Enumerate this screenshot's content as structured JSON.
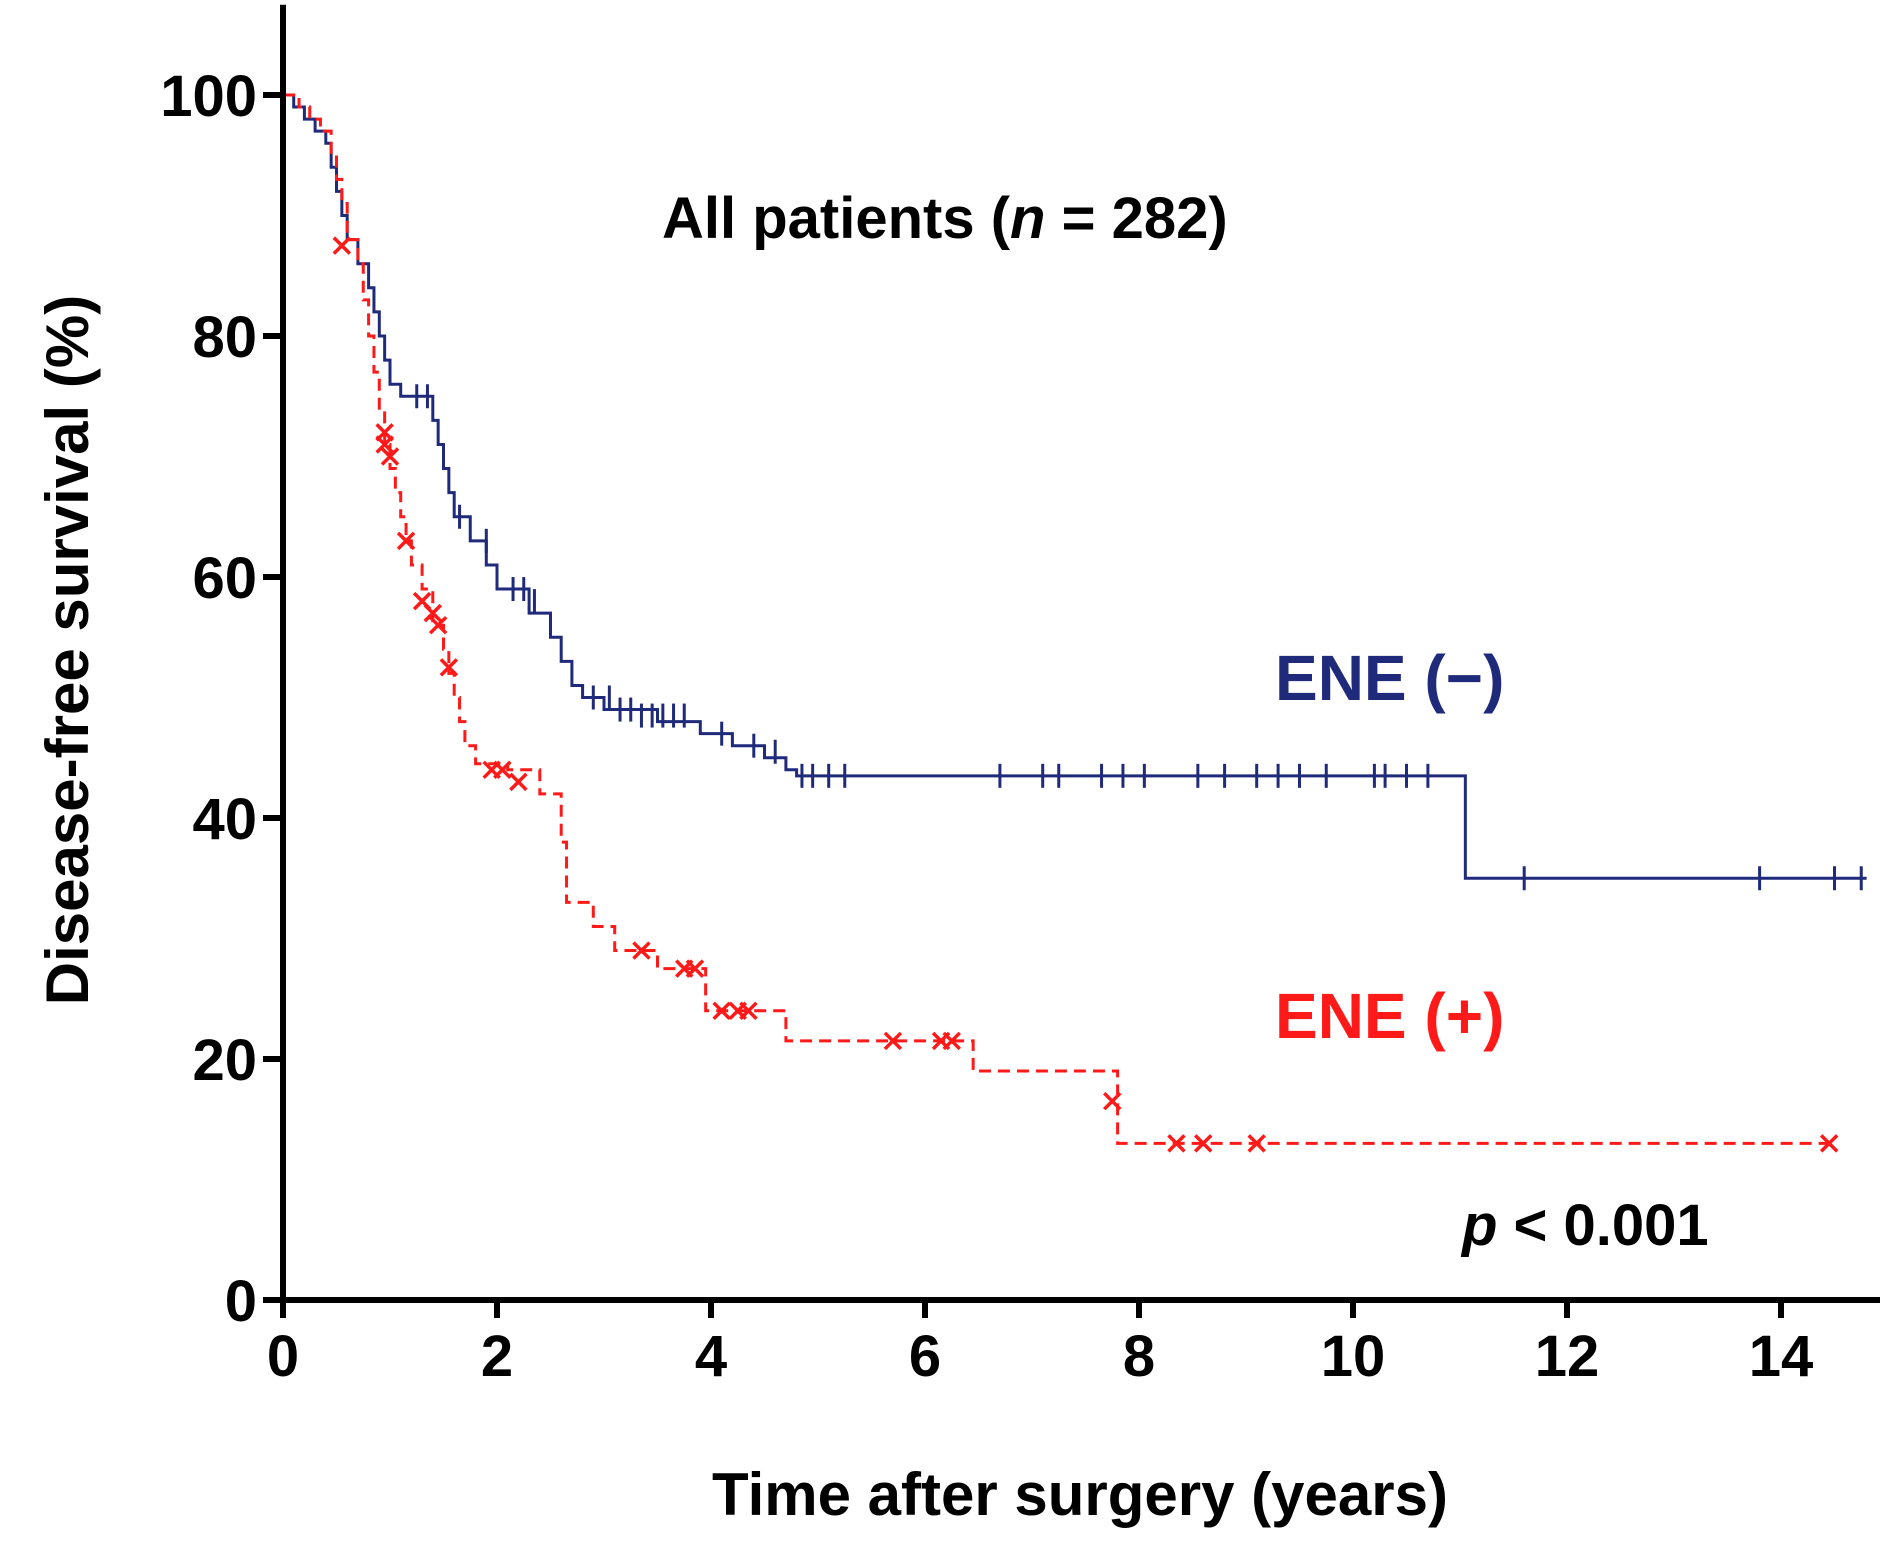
{
  "chart_data": {
    "type": "line",
    "subtype": "kaplan-meier",
    "title": "",
    "annotation_title": {
      "prefix": "All patients (",
      "n_symbol": "n",
      "suffix": " = 282)"
    },
    "pvalue": {
      "symbol": "p",
      "text": " < 0.001"
    },
    "xlabel": "Time after surgery (years)",
    "ylabel": "Disease-free survival (%)",
    "xlim": [
      0,
      14.8
    ],
    "ylim": [
      0,
      105
    ],
    "xticks": [
      0,
      2,
      4,
      6,
      8,
      10,
      12,
      14
    ],
    "yticks": [
      0,
      20,
      40,
      60,
      80,
      100
    ],
    "series": [
      {
        "name": "ENE (−)",
        "label": "ENE (−)",
        "color": "#1f2a7a",
        "line_style": "solid",
        "censor_marker": "tick",
        "steps": [
          [
            0,
            100
          ],
          [
            0.1,
            99
          ],
          [
            0.2,
            98
          ],
          [
            0.3,
            97
          ],
          [
            0.4,
            96
          ],
          [
            0.45,
            94
          ],
          [
            0.5,
            92
          ],
          [
            0.55,
            90
          ],
          [
            0.6,
            88
          ],
          [
            0.7,
            86
          ],
          [
            0.8,
            84
          ],
          [
            0.85,
            82
          ],
          [
            0.9,
            80
          ],
          [
            0.95,
            78
          ],
          [
            1.0,
            76
          ],
          [
            1.1,
            75
          ],
          [
            1.4,
            73
          ],
          [
            1.45,
            71
          ],
          [
            1.5,
            69
          ],
          [
            1.55,
            67
          ],
          [
            1.6,
            65
          ],
          [
            1.75,
            63
          ],
          [
            1.9,
            61
          ],
          [
            2.0,
            59
          ],
          [
            2.3,
            57
          ],
          [
            2.5,
            55
          ],
          [
            2.6,
            53
          ],
          [
            2.7,
            51
          ],
          [
            2.8,
            50
          ],
          [
            3.0,
            49
          ],
          [
            3.5,
            48
          ],
          [
            3.9,
            47
          ],
          [
            4.2,
            46
          ],
          [
            4.5,
            45
          ],
          [
            4.7,
            44
          ],
          [
            4.8,
            43.5
          ],
          [
            11.05,
            35
          ]
        ],
        "end_x": 14.8,
        "censored": [
          [
            1.25,
            75
          ],
          [
            1.35,
            75
          ],
          [
            1.65,
            65
          ],
          [
            1.9,
            63
          ],
          [
            2.15,
            59
          ],
          [
            2.25,
            59
          ],
          [
            2.35,
            58
          ],
          [
            2.9,
            50
          ],
          [
            3.05,
            50
          ],
          [
            3.15,
            49
          ],
          [
            3.25,
            49
          ],
          [
            3.35,
            48.5
          ],
          [
            3.45,
            48.5
          ],
          [
            3.55,
            48.5
          ],
          [
            3.65,
            48.5
          ],
          [
            3.75,
            48.5
          ],
          [
            4.1,
            47
          ],
          [
            4.4,
            46
          ],
          [
            4.6,
            45.5
          ],
          [
            4.85,
            43.5
          ],
          [
            4.95,
            43.5
          ],
          [
            5.1,
            43.5
          ],
          [
            5.25,
            43.5
          ],
          [
            6.7,
            43.5
          ],
          [
            7.1,
            43.5
          ],
          [
            7.25,
            43.5
          ],
          [
            7.65,
            43.5
          ],
          [
            7.85,
            43.5
          ],
          [
            8.05,
            43.5
          ],
          [
            8.55,
            43.5
          ],
          [
            8.8,
            43.5
          ],
          [
            9.1,
            43.5
          ],
          [
            9.3,
            43.5
          ],
          [
            9.5,
            43.5
          ],
          [
            9.75,
            43.5
          ],
          [
            10.2,
            43.5
          ],
          [
            10.3,
            43.5
          ],
          [
            10.5,
            43.5
          ],
          [
            10.7,
            43.5
          ],
          [
            11.6,
            35
          ],
          [
            13.8,
            35
          ],
          [
            14.5,
            35
          ],
          [
            14.75,
            35
          ]
        ]
      },
      {
        "name": "ENE (+)",
        "label": "ENE (+)",
        "color": "#ff1a1a",
        "line_style": "dashed",
        "censor_marker": "x",
        "steps": [
          [
            0,
            100
          ],
          [
            0.15,
            99
          ],
          [
            0.25,
            98
          ],
          [
            0.35,
            97
          ],
          [
            0.45,
            95
          ],
          [
            0.5,
            93
          ],
          [
            0.55,
            91
          ],
          [
            0.6,
            88
          ],
          [
            0.7,
            86
          ],
          [
            0.75,
            83
          ],
          [
            0.8,
            80
          ],
          [
            0.85,
            77
          ],
          [
            0.9,
            74
          ],
          [
            0.95,
            71
          ],
          [
            1.0,
            69
          ],
          [
            1.05,
            67
          ],
          [
            1.1,
            65
          ],
          [
            1.15,
            63
          ],
          [
            1.2,
            61
          ],
          [
            1.3,
            59
          ],
          [
            1.4,
            56
          ],
          [
            1.5,
            54
          ],
          [
            1.55,
            52
          ],
          [
            1.6,
            50
          ],
          [
            1.65,
            48
          ],
          [
            1.7,
            46
          ],
          [
            1.8,
            44.5
          ],
          [
            2.1,
            44
          ],
          [
            2.4,
            42
          ],
          [
            2.6,
            38
          ],
          [
            2.65,
            33
          ],
          [
            2.9,
            31
          ],
          [
            3.1,
            29
          ],
          [
            3.5,
            27.5
          ],
          [
            3.95,
            24
          ],
          [
            4.7,
            21.5
          ],
          [
            6.45,
            19
          ],
          [
            7.8,
            13
          ]
        ],
        "end_x": 14.45,
        "censored": [
          [
            0.55,
            87.5
          ],
          [
            0.95,
            72
          ],
          [
            0.95,
            71
          ],
          [
            1.0,
            70
          ],
          [
            1.15,
            63
          ],
          [
            1.3,
            58
          ],
          [
            1.4,
            57
          ],
          [
            1.45,
            56
          ],
          [
            1.55,
            52.5
          ],
          [
            1.95,
            44
          ],
          [
            2.05,
            44
          ],
          [
            2.2,
            43
          ],
          [
            3.35,
            29
          ],
          [
            3.75,
            27.5
          ],
          [
            3.85,
            27.5
          ],
          [
            4.1,
            24
          ],
          [
            4.25,
            24
          ],
          [
            4.35,
            24
          ],
          [
            5.7,
            21.5
          ],
          [
            6.15,
            21.5
          ],
          [
            6.25,
            21.5
          ],
          [
            7.75,
            16.5
          ],
          [
            8.35,
            13
          ],
          [
            8.6,
            13
          ],
          [
            9.1,
            13
          ],
          [
            14.45,
            13
          ]
        ]
      }
    ]
  }
}
